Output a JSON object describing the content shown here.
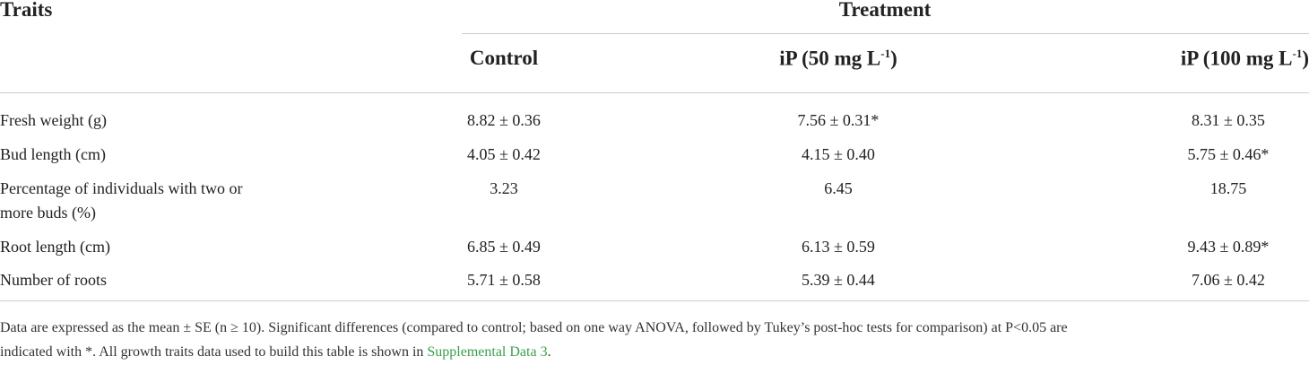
{
  "table": {
    "header": {
      "traits": "Traits",
      "treatment": "Treatment"
    },
    "columns": [
      {
        "text": "Control"
      },
      {
        "text": "iP (50 mg L",
        "sup": "-1",
        "close": ")"
      },
      {
        "text": "iP (100 mg L",
        "sup": "-1",
        "close": ")"
      }
    ],
    "rows": [
      [
        "Fresh weight (g)",
        "8.82 ± 0.36",
        "7.56 ± 0.31*",
        "8.31 ± 0.35"
      ],
      [
        "Bud length (cm)",
        "4.05 ± 0.42",
        "4.15 ± 0.40",
        "5.75 ± 0.46*"
      ],
      [
        "Percentage of individuals with two or more buds (%)",
        "3.23",
        "6.45",
        "18.75"
      ],
      [
        "Root length (cm)",
        "6.85 ± 0.49",
        "6.13 ± 0.59",
        "9.43 ± 0.89*"
      ],
      [
        "Number of roots",
        "5.71 ± 0.58",
        "5.39 ± 0.44",
        "7.06 ± 0.42"
      ]
    ]
  },
  "note": {
    "line_1": "Data are expressed as the mean ± SE (n ≥ 10). Significant differences (compared to control; based on one way ANOVA, followed by Tukey’s post-hoc tests for comparison) at P<0.05 are",
    "line_2": "indicated with *. All growth traits data used to build this table is shown in ",
    "link": "Supplemental Data 3",
    "end": "."
  }
}
